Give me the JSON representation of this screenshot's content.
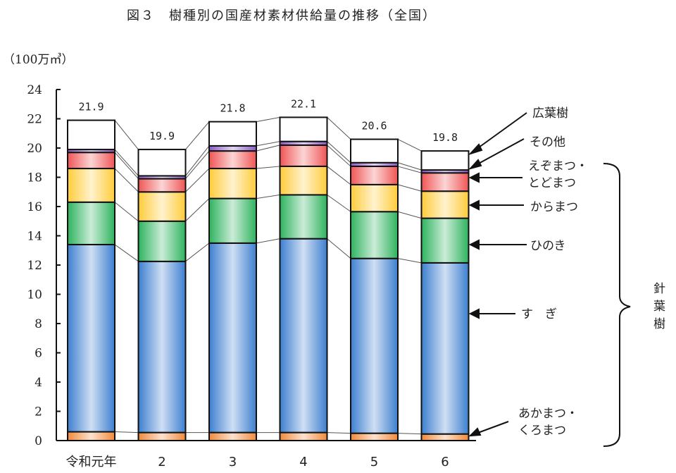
{
  "title": "図３　樹種別の国産材素材供給量の推移（全国）",
  "unit_label": "（100万㎥）",
  "chart_data": {
    "type": "bar",
    "stacked": true,
    "title": "図３　樹種別の国産材素材供給量の推移（全国）",
    "ylabel": "100万㎥",
    "xlabel": "",
    "ylim": [
      0,
      24
    ],
    "yticks": [
      0,
      2,
      4,
      6,
      8,
      10,
      12,
      14,
      16,
      18,
      20,
      22,
      24
    ],
    "categories": [
      "令和元年",
      "2",
      "3",
      "4",
      "5",
      "6"
    ],
    "totals": [
      "21.9",
      "19.9",
      "21.8",
      "22.1",
      "20.6",
      "19.8"
    ],
    "series": [
      {
        "name": "あかまつ・くろまつ",
        "color": "#f08a3c",
        "values": [
          0.6,
          0.55,
          0.55,
          0.55,
          0.5,
          0.45
        ]
      },
      {
        "name": "すぎ",
        "color": "#3d7fd0",
        "values": [
          12.8,
          11.7,
          12.95,
          13.25,
          11.95,
          11.7
        ]
      },
      {
        "name": "ひのき",
        "color": "#2eb35e",
        "values": [
          2.9,
          2.75,
          3.05,
          3.0,
          3.2,
          3.05
        ]
      },
      {
        "name": "からまつ",
        "color": "#ffcc3a",
        "values": [
          2.3,
          2.0,
          2.05,
          1.95,
          1.85,
          1.85
        ]
      },
      {
        "name": "えぞまつ・とどまつ",
        "color": "#f05555",
        "values": [
          1.1,
          0.9,
          1.2,
          1.45,
          1.25,
          1.25
        ]
      },
      {
        "name": "その他",
        "color": "#8a5cc8",
        "values": [
          0.2,
          0.2,
          0.35,
          0.25,
          0.25,
          0.2
        ]
      },
      {
        "name": "広葉樹",
        "color": "#ffffff",
        "values": [
          2.0,
          1.8,
          1.65,
          1.65,
          1.6,
          1.3
        ]
      }
    ],
    "grid": false,
    "legend_position": "right (annotated with arrows)",
    "group_bracket": "針葉樹"
  },
  "annotations": {
    "hardwood": "広葉樹",
    "other": "その他",
    "ezomatsu_1": "えぞまつ・",
    "ezomatsu_2": "とどまつ",
    "karamatsu": "からまつ",
    "hinoki": "ひのき",
    "sugi": "す　ぎ",
    "akamatsu_1": "あかまつ・",
    "akamatsu_2": "くろまつ",
    "conifer": "針葉樹"
  }
}
